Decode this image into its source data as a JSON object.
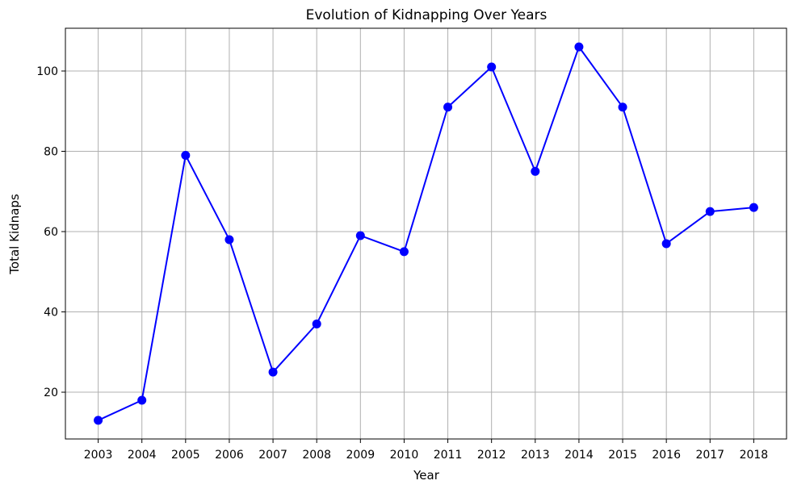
{
  "chart_data": {
    "type": "line",
    "title": "Evolution of Kidnapping Over Years",
    "xlabel": "Year",
    "ylabel": "Total Kidnaps",
    "x": [
      "2003",
      "2004",
      "2005",
      "2006",
      "2007",
      "2008",
      "2009",
      "2010",
      "2011",
      "2012",
      "2013",
      "2014",
      "2015",
      "2016",
      "2017",
      "2018"
    ],
    "series": [
      {
        "values": [
          13,
          18,
          79,
          58,
          25,
          37,
          59,
          55,
          91,
          101,
          75,
          106,
          91,
          57,
          65,
          66
        ],
        "color": "#0000ff",
        "marker": "circle"
      }
    ],
    "ylim": [
      8.35,
      110.65
    ],
    "yticks": [
      20,
      40,
      60,
      80,
      100
    ],
    "grid": true,
    "legend": false
  }
}
